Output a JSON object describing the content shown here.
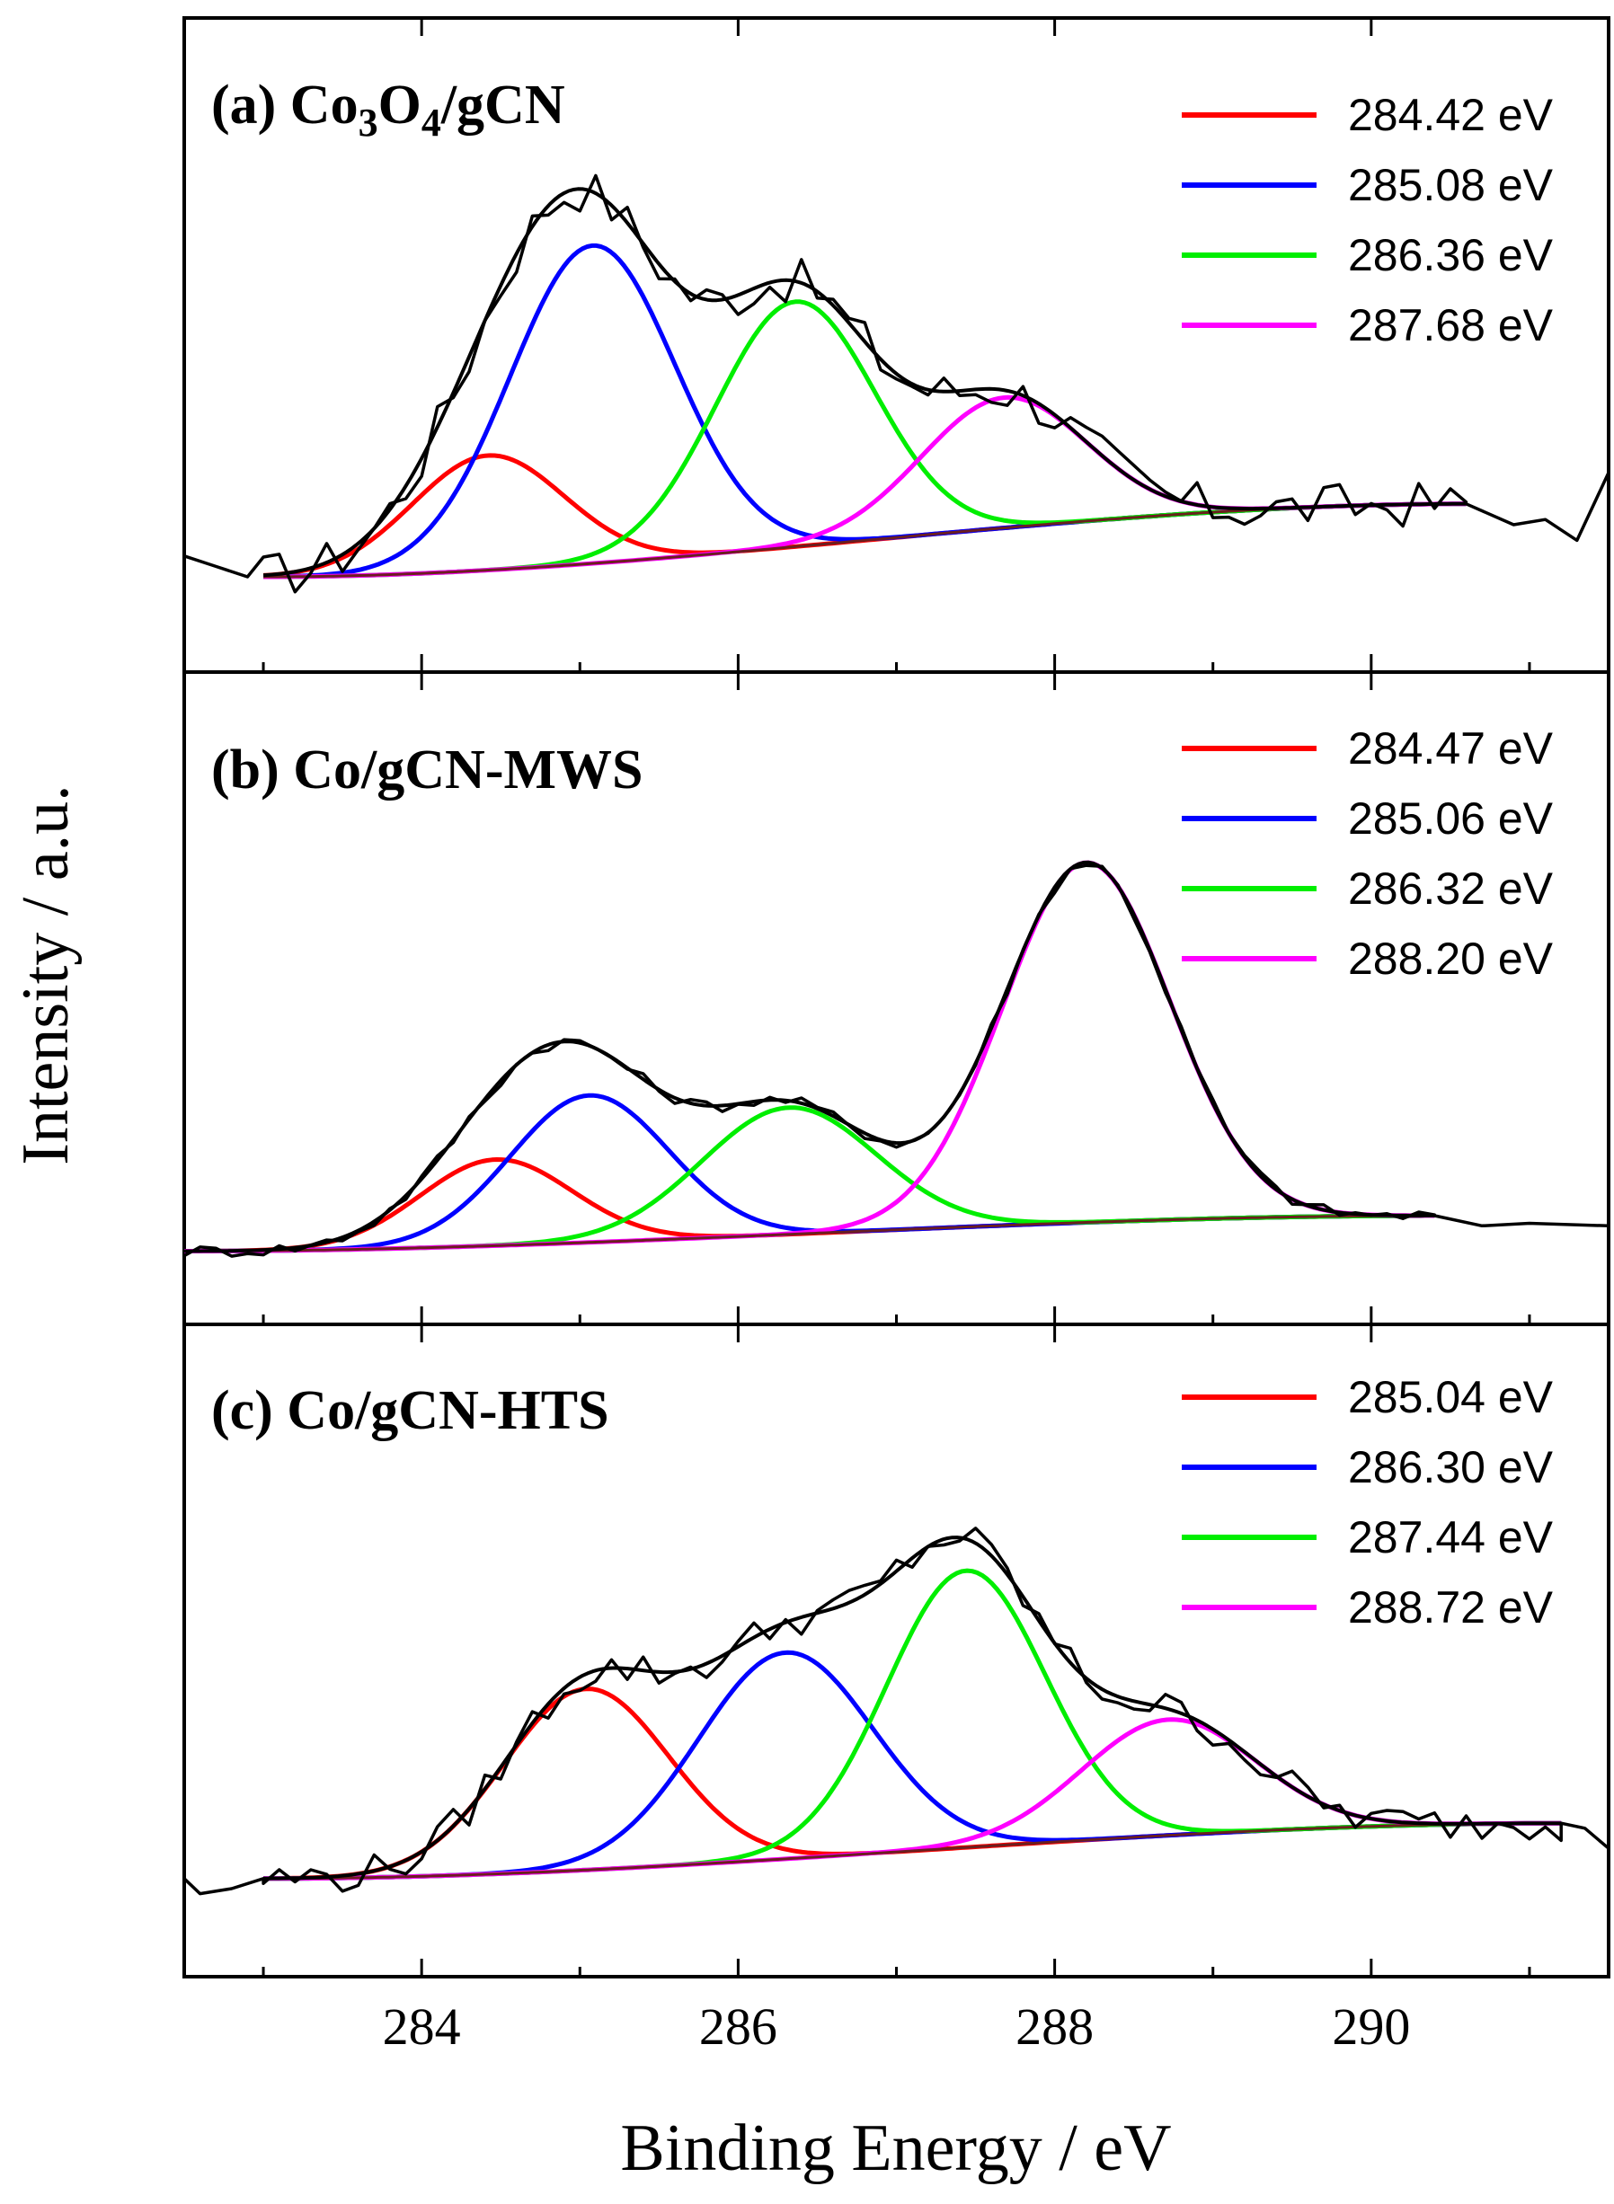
{
  "chart_data": {
    "type": "line",
    "xlabel": "Binding Energy / eV",
    "ylabel": "Intensity / a.u.",
    "xlim": [
      282.5,
      291.5
    ],
    "xticks": [
      284,
      286,
      288,
      290
    ],
    "xtick_labels": [
      "284",
      "286",
      "288",
      "290"
    ],
    "panels": [
      {
        "title": {
          "prefix": "(a) Co",
          "sub1": "3",
          "mid": "O",
          "sub2": "4",
          "suffix": "/gCN"
        },
        "ylim": [
          0,
          1
        ],
        "background": {
          "x0": 283.0,
          "x1": 290.6,
          "y_start": 0.1,
          "y_end": 0.24
        },
        "envelope_noise": 0.045,
        "tail": [
          [
            290.6,
            0.24
          ],
          [
            290.9,
            0.2
          ],
          [
            291.1,
            0.21
          ],
          [
            291.3,
            0.17
          ],
          [
            291.5,
            0.3
          ]
        ],
        "head": [
          [
            282.5,
            0.14
          ],
          [
            282.7,
            0.12
          ],
          [
            282.9,
            0.1
          ]
        ],
        "components": [
          {
            "label": "284.42 eV",
            "color": "#ff0000",
            "center": 284.42,
            "amplitude": 0.22,
            "sigma": 0.48
          },
          {
            "label": "285.08 eV",
            "color": "#0000ff",
            "center": 285.08,
            "amplitude": 0.61,
            "sigma": 0.52
          },
          {
            "label": "286.36 eV",
            "color": "#00ee00",
            "center": 286.36,
            "amplitude": 0.47,
            "sigma": 0.5
          },
          {
            "label": "287.68 eV",
            "color": "#ff00ff",
            "center": 287.68,
            "amplitude": 0.25,
            "sigma": 0.52
          }
        ]
      },
      {
        "title": {
          "prefix": "(b) Co/gCN-MWS",
          "sub1": "",
          "mid": "",
          "sub2": "",
          "suffix": ""
        },
        "ylim": [
          0,
          1
        ],
        "background": {
          "x0": 282.5,
          "x1": 290.4,
          "y_start": 0.07,
          "y_end": 0.14
        },
        "envelope_noise": 0.012,
        "tail": [
          [
            290.4,
            0.14
          ],
          [
            290.7,
            0.12
          ],
          [
            291.0,
            0.125
          ],
          [
            291.5,
            0.12
          ]
        ],
        "head": [],
        "components": [
          {
            "label": "284.47 eV",
            "color": "#ff0000",
            "center": 284.47,
            "amplitude": 0.17,
            "sigma": 0.48
          },
          {
            "label": "285.06 eV",
            "color": "#0000ff",
            "center": 285.06,
            "amplitude": 0.29,
            "sigma": 0.5
          },
          {
            "label": "286.32 eV",
            "color": "#00ee00",
            "center": 286.32,
            "amplitude": 0.25,
            "sigma": 0.55
          },
          {
            "label": "288.20 eV",
            "color": "#ff00ff",
            "center": 288.2,
            "amplitude": 0.71,
            "sigma": 0.53
          }
        ]
      },
      {
        "title": {
          "prefix": "(c) Co/gCN-HTS",
          "sub1": "",
          "mid": "",
          "sub2": "",
          "suffix": ""
        },
        "ylim": [
          0,
          1
        ],
        "background": {
          "x0": 283.0,
          "x1": 291.2,
          "y_start": 0.07,
          "y_end": 0.18
        },
        "envelope_noise": 0.035,
        "tail": [
          [
            291.2,
            0.18
          ],
          [
            291.35,
            0.17
          ],
          [
            291.5,
            0.13
          ]
        ],
        "head": [
          [
            282.5,
            0.07
          ],
          [
            282.6,
            0.04
          ],
          [
            282.8,
            0.05
          ],
          [
            283.0,
            0.07
          ]
        ],
        "components": [
          {
            "label": "285.04 eV",
            "color": "#ff0000",
            "center": 285.04,
            "amplitude": 0.36,
            "sigma": 0.52
          },
          {
            "label": "286.30 eV",
            "color": "#0000ff",
            "center": 286.3,
            "amplitude": 0.41,
            "sigma": 0.55
          },
          {
            "label": "287.44 eV",
            "color": "#00ee00",
            "center": 287.44,
            "amplitude": 0.55,
            "sigma": 0.5
          },
          {
            "label": "288.72 eV",
            "color": "#ff00ff",
            "center": 288.72,
            "amplitude": 0.23,
            "sigma": 0.55
          }
        ]
      }
    ]
  }
}
